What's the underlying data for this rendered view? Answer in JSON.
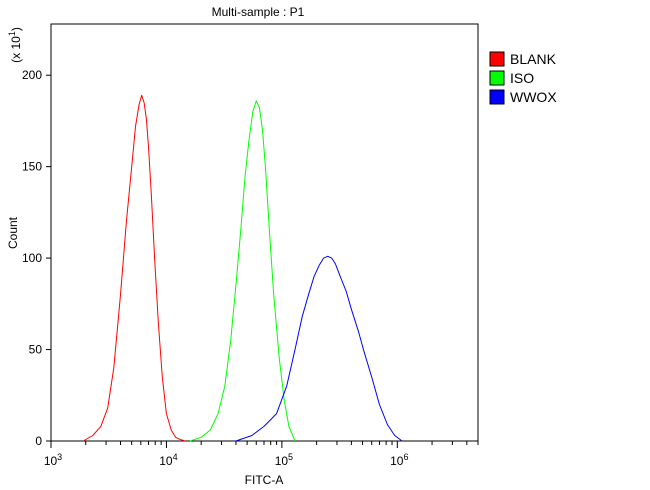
{
  "chart_data": {
    "type": "line",
    "title": "Multi-sample : P1",
    "xlabel": "FITC-A",
    "ylabel": "Count",
    "y_multiplier": "(x 10",
    "y_multiplier_exp": "1",
    "y_multiplier_close": ")",
    "x_scale": "log",
    "xlim": [
      1000,
      5000000
    ],
    "ylim": [
      0,
      228
    ],
    "x_ticks": [
      {
        "value": 1000,
        "base": "10",
        "exp": "3"
      },
      {
        "value": 10000,
        "base": "10",
        "exp": "4"
      },
      {
        "value": 100000,
        "base": "10",
        "exp": "5"
      },
      {
        "value": 1000000,
        "base": "10",
        "exp": "6"
      }
    ],
    "y_ticks": [
      0,
      50,
      100,
      150,
      200
    ],
    "legend_position": "right",
    "series": [
      {
        "name": "BLANK",
        "color": "#ff0000",
        "x": [
          1900,
          2300,
          2700,
          3100,
          3500,
          4000,
          4500,
          5000,
          5400,
          5800,
          6100,
          6400,
          6700,
          7000,
          7400,
          7900,
          8500,
          9200,
          10000,
          11000,
          12000,
          13000,
          14500
        ],
        "y": [
          0,
          3,
          8,
          18,
          40,
          80,
          120,
          150,
          172,
          184,
          189,
          185,
          176,
          160,
          135,
          100,
          65,
          35,
          15,
          6,
          2,
          1,
          0
        ]
      },
      {
        "name": "ISO",
        "color": "#00ff00",
        "x": [
          16000,
          20000,
          24000,
          28000,
          32000,
          36000,
          40000,
          44000,
          48000,
          52000,
          56000,
          60000,
          64000,
          68000,
          72000,
          78000,
          85000,
          95000,
          105000,
          115000,
          130000
        ],
        "y": [
          0,
          2,
          6,
          15,
          30,
          55,
          85,
          115,
          145,
          165,
          180,
          186,
          182,
          170,
          150,
          115,
          80,
          45,
          22,
          8,
          0
        ]
      },
      {
        "name": "WWOX",
        "color": "#0000ff",
        "x": [
          40000,
          55000,
          70000,
          90000,
          110000,
          130000,
          150000,
          170000,
          190000,
          210000,
          230000,
          250000,
          270000,
          290000,
          320000,
          360000,
          400000,
          460000,
          520000,
          600000,
          700000,
          820000,
          950000,
          1100000
        ],
        "y": [
          0,
          3,
          8,
          15,
          30,
          50,
          68,
          80,
          90,
          96,
          100,
          101,
          100,
          97,
          90,
          82,
          72,
          60,
          48,
          35,
          20,
          9,
          3,
          0
        ]
      }
    ]
  }
}
